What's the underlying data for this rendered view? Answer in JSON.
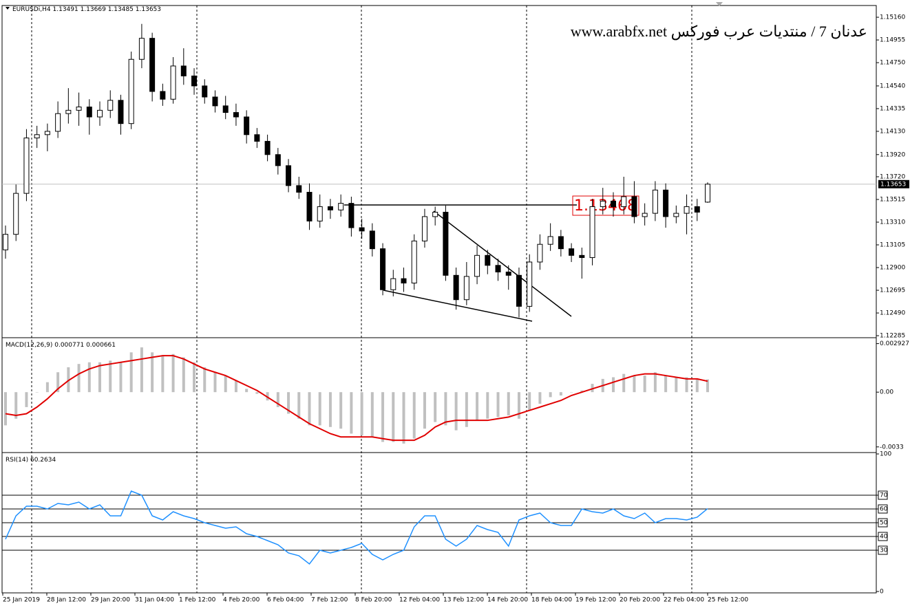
{
  "chart_data": {
    "type": "candlestick",
    "symbol": "EURUSDi,H4",
    "watermark": "عدنان 7 / منتديات عرب فوركس www.arabfx.net",
    "annotation": "1.13468",
    "x_labels": [
      "25 Jan 2019",
      "28 Jan 12:00",
      "29 Jan 20:00",
      "31 Jan 04:00",
      "1 Feb 12:00",
      "4 Feb 20:00",
      "6 Feb 04:00",
      "7 Feb 12:00",
      "8 Feb 20:00",
      "12 Feb 04:00",
      "13 Feb 12:00",
      "14 Feb 20:00",
      "18 Feb 04:00",
      "19 Feb 12:00",
      "20 Feb 20:00",
      "22 Feb 04:00",
      "25 Feb 12:00"
    ],
    "open": [
      1.1306,
      1.132,
      1.1357,
      1.1407,
      1.141,
      1.1413,
      1.1429,
      1.1432,
      1.1435,
      1.1426,
      1.1432,
      1.1441,
      1.142,
      1.1478,
      1.1497,
      1.1449,
      1.1442,
      1.1472,
      1.1463,
      1.1454,
      1.1444,
      1.1436,
      1.143,
      1.1426,
      1.141,
      1.1404,
      1.1392,
      1.1382,
      1.1364,
      1.1358,
      1.1332,
      1.1345,
      1.1342,
      1.1348,
      1.1326,
      1.1323,
      1.1307,
      1.127,
      1.128,
      1.1276,
      1.1314,
      1.1336,
      1.134,
      1.1283,
      1.1261,
      1.1282,
      1.1301,
      1.1292,
      1.1286,
      1.1283,
      1.1255,
      1.1295,
      1.1311,
      1.1318,
      1.1307,
      1.1301,
      1.1299,
      1.1345,
      1.135,
      1.1345,
      1.1354,
      1.1336,
      1.1339,
      1.136,
      1.1336,
      1.1339,
      1.1345,
      1.13491
    ],
    "high": [
      1.1328,
      1.1365,
      1.1415,
      1.1418,
      1.142,
      1.144,
      1.1452,
      1.1448,
      1.1442,
      1.144,
      1.145,
      1.1446,
      1.1485,
      1.151,
      1.1502,
      1.1456,
      1.148,
      1.1488,
      1.147,
      1.146,
      1.145,
      1.1445,
      1.1438,
      1.1432,
      1.1416,
      1.141,
      1.1398,
      1.1388,
      1.1372,
      1.1366,
      1.1356,
      1.1352,
      1.1356,
      1.1354,
      1.1334,
      1.133,
      1.1312,
      1.1288,
      1.129,
      1.132,
      1.1343,
      1.1345,
      1.1346,
      1.129,
      1.1295,
      1.131,
      1.1306,
      1.1298,
      1.1292,
      1.129,
      1.1302,
      1.132,
      1.133,
      1.1324,
      1.1312,
      1.1308,
      1.1352,
      1.1362,
      1.1358,
      1.1372,
      1.1368,
      1.1348,
      1.1368,
      1.1366,
      1.1346,
      1.1356,
      1.1352,
      1.13669
    ],
    "low": [
      1.1298,
      1.1314,
      1.135,
      1.1398,
      1.1395,
      1.1407,
      1.142,
      1.1418,
      1.141,
      1.1418,
      1.1425,
      1.141,
      1.1415,
      1.147,
      1.144,
      1.1436,
      1.1438,
      1.1455,
      1.1446,
      1.1438,
      1.143,
      1.1424,
      1.1418,
      1.1402,
      1.1398,
      1.1386,
      1.1374,
      1.1358,
      1.1352,
      1.1324,
      1.1326,
      1.1334,
      1.1336,
      1.1318,
      1.1316,
      1.13,
      1.1265,
      1.1264,
      1.1268,
      1.127,
      1.1308,
      1.1328,
      1.1278,
      1.1252,
      1.1256,
      1.1275,
      1.1284,
      1.1278,
      1.127,
      1.1245,
      1.125,
      1.1288,
      1.1305,
      1.13,
      1.1295,
      1.128,
      1.1292,
      1.1338,
      1.1336,
      1.1338,
      1.133,
      1.1328,
      1.1332,
      1.1326,
      1.133,
      1.132,
      1.1332,
      1.13485
    ],
    "close": [
      1.132,
      1.1357,
      1.1407,
      1.141,
      1.1413,
      1.1429,
      1.1432,
      1.1435,
      1.1426,
      1.1432,
      1.1441,
      1.142,
      1.1478,
      1.1497,
      1.1449,
      1.1442,
      1.1472,
      1.1463,
      1.1454,
      1.1444,
      1.1436,
      1.143,
      1.1426,
      1.141,
      1.1404,
      1.1392,
      1.1382,
      1.1364,
      1.1358,
      1.1332,
      1.1345,
      1.1342,
      1.1348,
      1.1326,
      1.1323,
      1.1307,
      1.127,
      1.128,
      1.1276,
      1.1314,
      1.1336,
      1.134,
      1.1283,
      1.1261,
      1.1282,
      1.1301,
      1.1292,
      1.1286,
      1.1283,
      1.1255,
      1.1295,
      1.1311,
      1.1318,
      1.1307,
      1.1301,
      1.1299,
      1.1345,
      1.135,
      1.1345,
      1.1354,
      1.1336,
      1.1339,
      1.136,
      1.1336,
      1.1339,
      1.1345,
      1.134,
      1.13653
    ],
    "ylim": [
      1.12273,
      1.15266
    ],
    "yticks": [
      {
        "value": 1.1516,
        "label": "1.15160"
      },
      1.14955,
      {
        "value": 1.1475,
        "label": "1.14750"
      },
      {
        "value": 1.1454,
        "label": "1.14540"
      },
      1.14335,
      {
        "value": 1.1413,
        "label": "1.14130"
      },
      {
        "value": 1.1392,
        "label": "1.13920"
      },
      {
        "value": 1.1372,
        "label": "1.13720"
      },
      1.13515,
      {
        "value": 1.1331,
        "label": "1.13310"
      },
      1.13105,
      {
        "value": 1.129,
        "label": "1.12900"
      },
      1.12695,
      {
        "value": 1.1249,
        "label": "1.12490"
      },
      1.12285
    ],
    "macd": {
      "name": "MACD(12,26,9)",
      "hist_color": "#c0c0c0",
      "signal_color": "#e00000",
      "ylim": [
        -0.0036,
        0.0032
      ],
      "yticks": [
        0.002927,
        {
          "value": 0,
          "label": "0.00"
        },
        -0.0033
      ],
      "histogram": [
        -0.002,
        -0.0016,
        -0.0009,
        0.0,
        0.0006,
        0.0012,
        0.0015,
        0.0017,
        0.0018,
        0.0018,
        0.0019,
        0.0018,
        0.0024,
        0.0027,
        0.0024,
        0.0022,
        0.0023,
        0.0021,
        0.0018,
        0.0015,
        0.0012,
        0.001,
        0.0007,
        0.0002,
        -0.0001,
        -0.0005,
        -0.0009,
        -0.0013,
        -0.0016,
        -0.002,
        -0.002,
        -0.0021,
        -0.0022,
        -0.0025,
        -0.0026,
        -0.0027,
        -0.003,
        -0.003,
        -0.0031,
        -0.0028,
        -0.0022,
        -0.0018,
        -0.002,
        -0.0023,
        -0.0021,
        -0.0017,
        -0.0016,
        -0.0015,
        -0.0014,
        -0.0016,
        -0.0011,
        -0.0007,
        -0.0003,
        -0.0002,
        0.0,
        0.0001,
        0.0005,
        0.0008,
        0.0009,
        0.0011,
        0.001,
        0.001,
        0.0012,
        0.001,
        0.0009,
        0.0009,
        0.0008,
        0.000771
      ],
      "signal": [
        -0.0013,
        -0.0014,
        -0.0013,
        -0.0009,
        -0.0004,
        0.0002,
        0.0007,
        0.0011,
        0.0014,
        0.0016,
        0.0017,
        0.0018,
        0.0019,
        0.002,
        0.0021,
        0.0022,
        0.0022,
        0.002,
        0.0017,
        0.0014,
        0.0012,
        0.001,
        0.0007,
        0.0004,
        0.0001,
        -0.0003,
        -0.0007,
        -0.0011,
        -0.0015,
        -0.0019,
        -0.0022,
        -0.0025,
        -0.0027,
        -0.0027,
        -0.0027,
        -0.0027,
        -0.0028,
        -0.0029,
        -0.0029,
        -0.0029,
        -0.0026,
        -0.0021,
        -0.0018,
        -0.0017,
        -0.0017,
        -0.0017,
        -0.0017,
        -0.0016,
        -0.0015,
        -0.0013,
        -0.0011,
        -0.0009,
        -0.0007,
        -0.0005,
        -0.0002,
        0.0,
        0.0002,
        0.0004,
        0.0006,
        0.0008,
        0.001,
        0.0011,
        0.0011,
        0.001,
        0.0009,
        0.0008,
        0.0008,
        0.000661
      ]
    },
    "rsi": {
      "name": "RSI(14)",
      "color": "#1e90ff",
      "ylim": [
        0,
        100
      ],
      "yticks": [
        100,
        70,
        60,
        50,
        40,
        30,
        0
      ],
      "levels": [
        70,
        60,
        50,
        40,
        30
      ],
      "values": [
        38,
        55,
        62,
        62,
        60,
        64,
        63,
        65,
        60,
        63,
        55,
        55,
        73,
        70,
        55,
        52,
        58,
        55,
        53,
        50,
        48,
        46,
        47,
        42,
        40,
        37,
        34,
        28,
        26,
        20,
        30,
        28,
        30,
        32,
        35,
        27,
        23,
        27,
        30,
        47,
        55,
        55,
        38,
        33,
        38,
        48,
        45,
        43,
        33,
        52,
        55,
        57,
        50,
        48,
        48,
        60,
        58,
        57,
        60,
        55,
        53,
        57,
        50,
        53,
        53,
        52,
        54,
        60.2634
      ]
    }
  }
}
